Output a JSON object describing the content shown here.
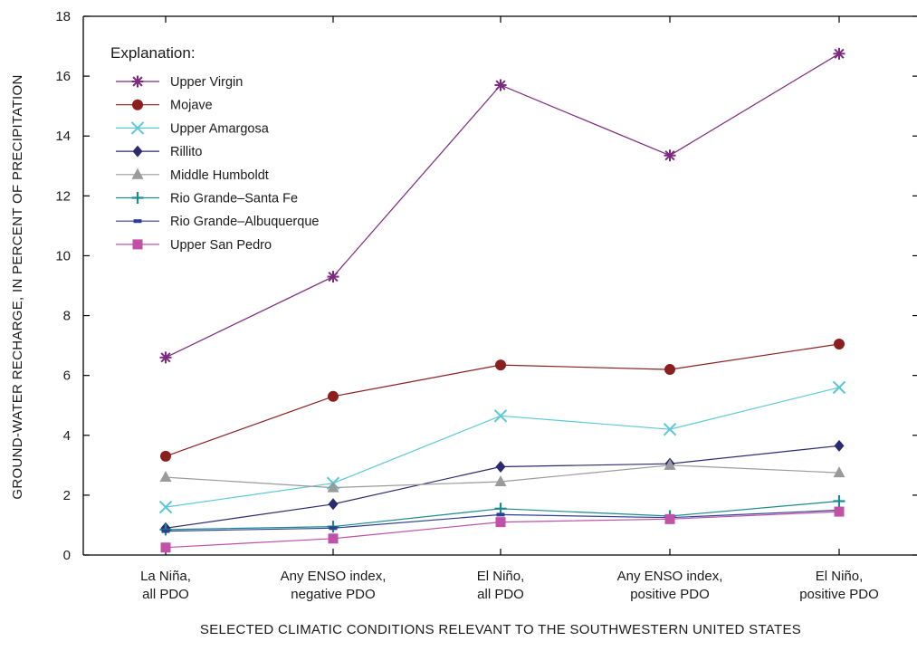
{
  "chart_data": {
    "type": "line",
    "title": "",
    "xlabel": "SELECTED CLIMATIC CONDITIONS RELEVANT TO THE SOUTHWESTERN UNITED STATES",
    "ylabel": "GROUND-WATER RECHARGE, IN PERCENT OF PRECIPITATION",
    "ylim": [
      0,
      18
    ],
    "yticks": [
      "0",
      "2",
      "4",
      "6",
      "8",
      "10",
      "12",
      "14",
      "16",
      "18"
    ],
    "categories": [
      [
        "La Niña,",
        "all PDO"
      ],
      [
        "Any ENSO index,",
        "negative PDO"
      ],
      [
        "El Niño,",
        "all PDO"
      ],
      [
        "Any ENSO index,",
        "positive PDO"
      ],
      [
        "El Niño,",
        "positive PDO"
      ]
    ],
    "grid": false,
    "legend_title": "Explanation:",
    "legend_position": "top-left",
    "series": [
      {
        "name": "Upper Virgin",
        "color": "#7b2a7e",
        "marker": "asterisk",
        "values": [
          6.6,
          9.3,
          15.7,
          13.35,
          16.75
        ]
      },
      {
        "name": "Mojave",
        "color": "#8b1f1f",
        "marker": "circle",
        "values": [
          3.3,
          5.3,
          6.35,
          6.2,
          7.05
        ]
      },
      {
        "name": "Upper Amargosa",
        "color": "#5bc8d6",
        "marker": "x",
        "values": [
          1.6,
          2.4,
          4.65,
          4.2,
          5.6
        ]
      },
      {
        "name": "Rillito",
        "color": "#2b2a6e",
        "marker": "diamond",
        "values": [
          0.9,
          1.7,
          2.95,
          3.05,
          3.65
        ]
      },
      {
        "name": "Middle Humboldt",
        "color": "#9a9a9a",
        "marker": "triangle",
        "values": [
          2.6,
          2.25,
          2.45,
          3.0,
          2.75
        ]
      },
      {
        "name": "Rio Grande–Santa Fe",
        "color": "#1a8a8a",
        "marker": "plus",
        "values": [
          0.85,
          0.95,
          1.55,
          1.3,
          1.8
        ]
      },
      {
        "name": "Rio Grande–Albuquerque",
        "color": "#2e3f8f",
        "marker": "dash",
        "values": [
          0.8,
          0.9,
          1.35,
          1.25,
          1.5
        ]
      },
      {
        "name": "Upper San Pedro",
        "color": "#c050a8",
        "marker": "square",
        "values": [
          0.25,
          0.55,
          1.1,
          1.2,
          1.45
        ]
      }
    ]
  }
}
